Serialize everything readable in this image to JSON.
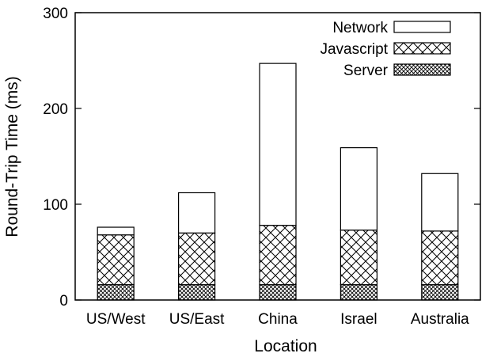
{
  "chart_data": {
    "type": "bar",
    "stacked": true,
    "title": "",
    "xlabel": "Location",
    "ylabel": "Round-Trip Time (ms)",
    "ylim": [
      0,
      300
    ],
    "yticks": [
      0,
      100,
      200,
      300
    ],
    "grid": false,
    "legend_position": "top-right",
    "categories": [
      "US/West",
      "US/East",
      "China",
      "Israel",
      "Australia"
    ],
    "series": [
      {
        "name": "Server",
        "pattern": "dense-crosshatch",
        "values": [
          16,
          16,
          16,
          16,
          16
        ]
      },
      {
        "name": "Javascript",
        "pattern": "crosshatch",
        "values": [
          52,
          54,
          62,
          57,
          56
        ]
      },
      {
        "name": "Network",
        "pattern": "empty",
        "values": [
          8,
          42,
          169,
          86,
          60
        ]
      }
    ],
    "legend_order": [
      "Network",
      "Javascript",
      "Server"
    ],
    "totals": [
      76,
      112,
      247,
      159,
      132
    ]
  }
}
